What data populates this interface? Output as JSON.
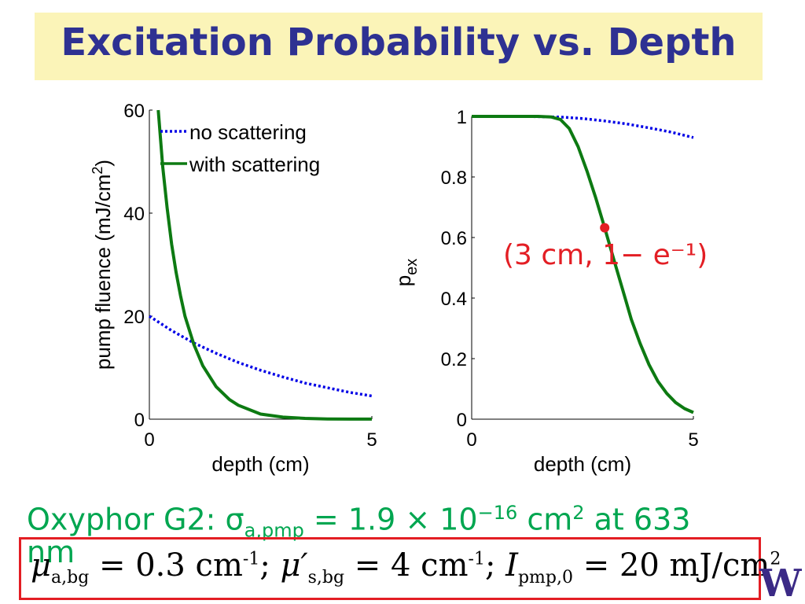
{
  "title": "Excitation Probability vs. Depth",
  "colors": {
    "title_bg": "#fbf4b8",
    "title_text": "#2e3192",
    "no_scattering": "#0000e6",
    "with_scattering": "#0d7a12",
    "annotation": "#e31e24",
    "oxyphor_text": "#00a650",
    "logo": "#3b2a86"
  },
  "oxyphor": {
    "prefix": "Oxyphor G2: σ",
    "sub": "a,pmp",
    "mid": " = 1.9 × 10",
    "exp": "−16",
    "unit": " cm",
    "unit_exp": "2",
    "suffix": " at 633",
    "tail": "nm"
  },
  "params": {
    "mu_a": "μ",
    "mu_a_sub": "a,bg",
    "mu_a_val": " = 0.3 cm",
    "mu_a_exp": "-1",
    "sep1": "; ",
    "mu_s": "μ′",
    "mu_s_sub": "s,bg",
    "mu_s_val": " = 4 cm",
    "mu_s_exp": "-1",
    "sep2": "; ",
    "I": "I",
    "I_sub": "pmp,0",
    "I_val": " = 20 mJ/cm",
    "I_exp": "2"
  },
  "logo": {
    "icon": "uw-w-logo-icon",
    "letter": "W"
  },
  "chart_data": [
    {
      "type": "line",
      "xlabel": "depth (cm)",
      "ylabel": "pump fluence (mJ/cm",
      "ylabel_sup": "2",
      "ylabel_close": ")",
      "xlim": [
        0,
        5
      ],
      "ylim": [
        0,
        60
      ],
      "xticks": [
        0,
        5
      ],
      "yticks": [
        0,
        20,
        40,
        60
      ],
      "legend": {
        "placement": "top-right"
      },
      "series": [
        {
          "name": "no scattering",
          "style": "dotted",
          "x": [
            0,
            0.5,
            1,
            1.5,
            2,
            2.5,
            3,
            3.5,
            4,
            4.5,
            5
          ],
          "y": [
            20,
            17.2,
            14.8,
            12.8,
            11.0,
            9.5,
            8.2,
            7.0,
            6.1,
            5.2,
            4.5
          ]
        },
        {
          "name": "with scattering",
          "style": "solid",
          "x": [
            0.2,
            0.3,
            0.4,
            0.5,
            0.6,
            0.7,
            0.8,
            1.0,
            1.2,
            1.5,
            1.8,
            2.0,
            2.5,
            3.0,
            3.5,
            4.0,
            4.5,
            5.0
          ],
          "y": [
            60,
            49,
            41,
            34,
            28.5,
            24,
            20,
            14.5,
            10.4,
            6.3,
            3.8,
            2.7,
            1.0,
            0.4,
            0.15,
            0.05,
            0.02,
            0.01
          ]
        }
      ]
    },
    {
      "type": "line",
      "xlabel": "depth (cm)",
      "ylabel": "p",
      "ylabel_sub": "ex",
      "xlim": [
        0,
        5
      ],
      "ylim": [
        0,
        1
      ],
      "xticks": [
        0,
        5
      ],
      "yticks": [
        0,
        0.2,
        0.4,
        0.6,
        0.8,
        1
      ],
      "series": [
        {
          "style": "dotted",
          "x": [
            0,
            1,
            2,
            2.5,
            3,
            3.5,
            4,
            4.5,
            5
          ],
          "y": [
            1,
            1,
            0.998,
            0.993,
            0.985,
            0.975,
            0.962,
            0.948,
            0.93
          ]
        },
        {
          "style": "solid",
          "x": [
            0,
            1,
            1.5,
            1.8,
            2.0,
            2.2,
            2.4,
            2.6,
            2.8,
            3.0,
            3.2,
            3.4,
            3.6,
            3.8,
            4.0,
            4.2,
            4.4,
            4.6,
            4.8,
            5.0
          ],
          "y": [
            1,
            1,
            1,
            0.998,
            0.99,
            0.96,
            0.9,
            0.82,
            0.73,
            0.632,
            0.53,
            0.43,
            0.33,
            0.25,
            0.18,
            0.125,
            0.085,
            0.055,
            0.035,
            0.022
          ]
        }
      ],
      "marker": {
        "x": 3,
        "y": 0.632
      },
      "annotation": "(3 cm, 1− e⁻¹)"
    }
  ]
}
